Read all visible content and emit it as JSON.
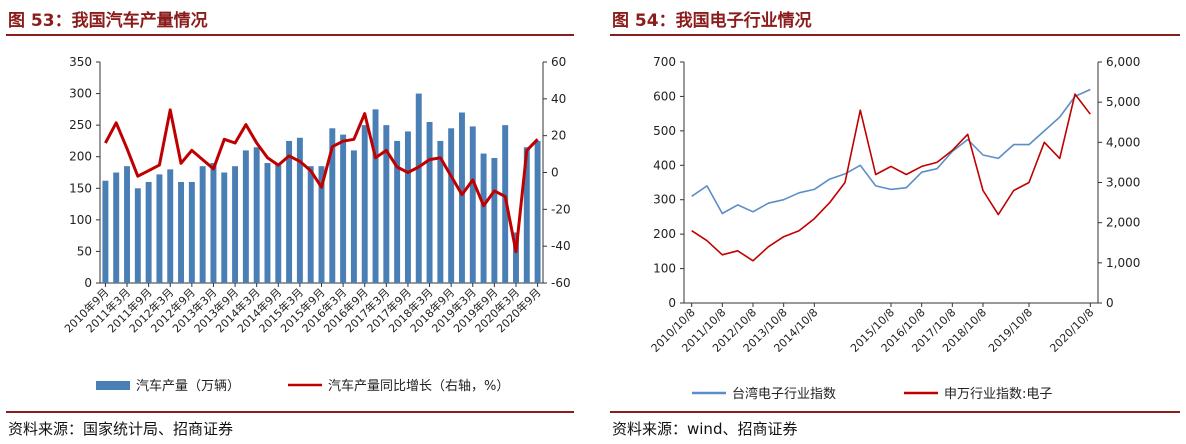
{
  "charts": [
    {
      "title": "图 53：我国汽车产量情况",
      "source": "资料来源：国家统计局、招商证券",
      "chart_data": {
        "type": "bar+line",
        "x": [
          "2010年9月",
          "2010年12月",
          "2011年3月",
          "2011年6月",
          "2011年9月",
          "2011年12月",
          "2012年3月",
          "2012年6月",
          "2012年9月",
          "2012年12月",
          "2013年3月",
          "2013年6月",
          "2013年9月",
          "2013年12月",
          "2014年3月",
          "2014年6月",
          "2014年9月",
          "2014年12月",
          "2015年3月",
          "2015年6月",
          "2015年9月",
          "2015年12月",
          "2016年3月",
          "2016年6月",
          "2016年9月",
          "2016年12月",
          "2017年3月",
          "2017年6月",
          "2017年9月",
          "2017年12月",
          "2018年3月",
          "2018年6月",
          "2018年9月",
          "2018年12月",
          "2019年3月",
          "2019年6月",
          "2019年9月",
          "2019年12月",
          "2020年3月",
          "2020年6月",
          "2020年9月"
        ],
        "x_tick_labels": [
          "2010年9月",
          "2011年3月",
          "2011年9月",
          "2012年3月",
          "2012年9月",
          "2013年3月",
          "2013年9月",
          "2014年3月",
          "2014年9月",
          "2015年3月",
          "2015年9月",
          "2016年3月",
          "2016年9月",
          "2017年3月",
          "2017年9月",
          "2018年3月",
          "2018年9月",
          "2019年3月",
          "2019年9月",
          "2020年3月",
          "2020年9月"
        ],
        "series": [
          {
            "name": "汽车产量（万辆）",
            "axis": "left",
            "type": "bar",
            "color": "#4a7fb5",
            "values": [
              162,
              175,
              185,
              150,
              160,
              172,
              180,
              160,
              160,
              185,
              190,
              175,
              185,
              210,
              215,
              190,
              190,
              225,
              230,
              185,
              185,
              245,
              235,
              210,
              250,
              275,
              250,
              225,
              240,
              300,
              255,
              225,
              245,
              270,
              248,
              205,
              198,
              250,
              80,
              215,
              225
            ]
          },
          {
            "name": "汽车产量同比增长（右轴，%）",
            "axis": "right",
            "type": "line",
            "color": "#c00000",
            "values": [
              16,
              27,
              13,
              -2,
              1,
              4,
              34,
              5,
              12,
              7,
              2,
              18,
              16,
              26,
              16,
              8,
              4,
              9,
              6,
              1,
              -8,
              14,
              17,
              18,
              32,
              8,
              12,
              3,
              0,
              3,
              7,
              8,
              -2,
              -12,
              -4,
              -18,
              -10,
              -13,
              -43,
              12,
              18
            ]
          }
        ],
        "left_axis": {
          "min": 0,
          "max": 350,
          "ticks": [
            0,
            50,
            100,
            150,
            200,
            250,
            300,
            350
          ]
        },
        "right_axis": {
          "min": -60,
          "max": 60,
          "ticks": [
            -60,
            -40,
            -20,
            0,
            20,
            40,
            60
          ]
        },
        "legend_position": "bottom",
        "grid": false
      }
    },
    {
      "title": "图 54：我国电子行业情况",
      "source": "资料来源：wind、招商证券",
      "chart_data": {
        "type": "line",
        "x": [
          "2010/10/8",
          "2011/4/8",
          "2011/10/8",
          "2012/4/8",
          "2012/10/8",
          "2013/4/8",
          "2013/10/8",
          "2014/4/8",
          "2014/10/8",
          "2015/1/8",
          "2015/4/8",
          "2015/6/8",
          "2015/8/8",
          "2015/10/8",
          "2016/4/8",
          "2016/10/8",
          "2017/4/8",
          "2017/10/8",
          "2018/4/8",
          "2018/10/8",
          "2019/1/8",
          "2019/4/8",
          "2019/10/8",
          "2020/1/8",
          "2020/4/8",
          "2020/7/8",
          "2020/10/8"
        ],
        "x_tick_labels": [
          "2010/10/8",
          "2011/10/8",
          "2012/10/8",
          "2013/10/8",
          "2014/10/8",
          "2015/10/8",
          "2016/10/8",
          "2017/10/8",
          "2018/10/8",
          "2019/10/8",
          "2020/10/8"
        ],
        "series": [
          {
            "name": "台湾电子行业指数",
            "axis": "left",
            "color": "#5b8ec9",
            "values": [
              310,
              340,
              260,
              285,
              265,
              290,
              300,
              320,
              330,
              360,
              375,
              400,
              340,
              330,
              335,
              380,
              390,
              440,
              475,
              430,
              420,
              460,
              460,
              500,
              540,
              600,
              620
            ]
          },
          {
            "name": "申万行业指数:电子",
            "axis": "right",
            "color": "#c00000",
            "values": [
              1800,
              1550,
              1200,
              1300,
              1050,
              1400,
              1650,
              1800,
              2100,
              2500,
              3000,
              4800,
              3200,
              3400,
              3200,
              3400,
              3500,
              3800,
              4200,
              2800,
              2200,
              2800,
              3000,
              4000,
              3600,
              5200,
              4700
            ]
          }
        ],
        "left_axis": {
          "min": 0,
          "max": 700,
          "ticks": [
            0,
            100,
            200,
            300,
            400,
            500,
            600,
            700
          ]
        },
        "right_axis": {
          "min": 0,
          "max": 6000,
          "ticks": [
            0,
            1000,
            2000,
            3000,
            4000,
            5000,
            6000
          ],
          "tick_labels": [
            "0",
            "1,000",
            "2,000",
            "3,000",
            "4,000",
            "5,000",
            "6,000"
          ]
        },
        "legend_position": "bottom",
        "grid": false
      }
    }
  ]
}
